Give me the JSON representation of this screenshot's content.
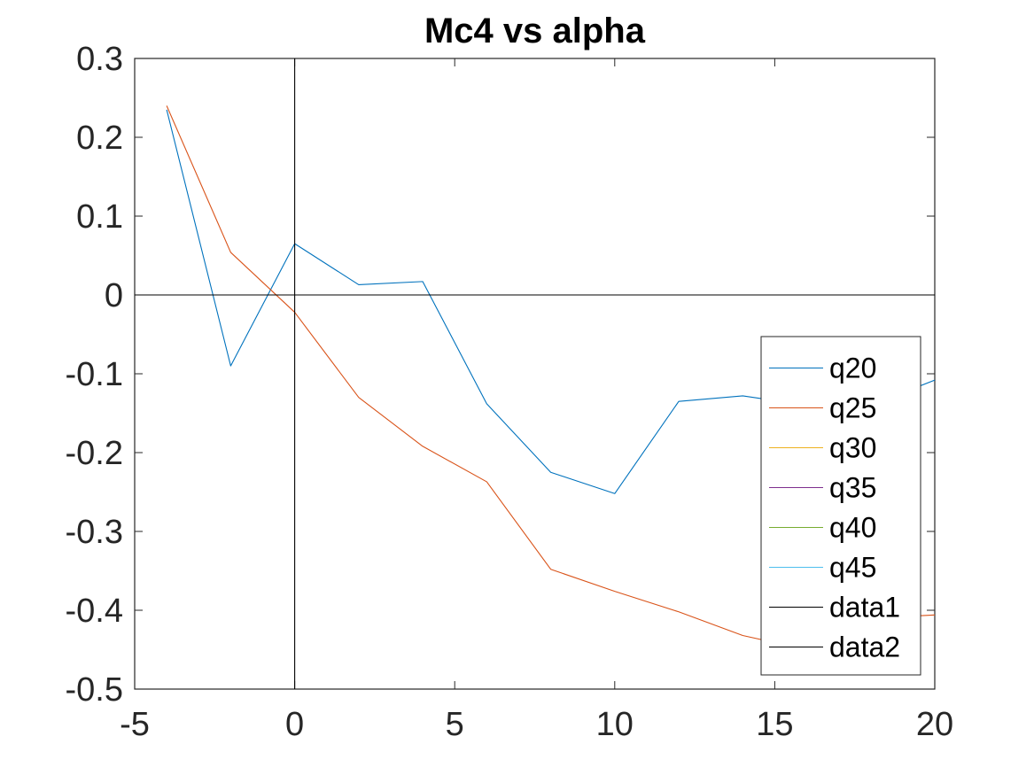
{
  "chart_data": {
    "type": "line",
    "title": "Mc4 vs alpha",
    "xlabel": "",
    "ylabel": "",
    "xlim": [
      -5,
      20
    ],
    "ylim": [
      -0.5,
      0.3
    ],
    "xticks": [
      -5,
      0,
      5,
      10,
      15,
      20
    ],
    "xtick_labels": [
      "-5",
      "0",
      "5",
      "10",
      "15",
      "20"
    ],
    "yticks": [
      -0.5,
      -0.4,
      -0.3,
      -0.2,
      -0.1,
      0,
      0.1,
      0.2,
      0.3
    ],
    "ytick_labels": [
      "-0.5",
      "-0.4",
      "-0.3",
      "-0.2",
      "-0.1",
      "0",
      "0.1",
      "0.2",
      "0.3"
    ],
    "grid": false,
    "legend_position": "bottom-right",
    "series": [
      {
        "name": "q20",
        "color": "#0072BD",
        "x": [
          -4,
          -2,
          0,
          2,
          4,
          6,
          8,
          10,
          12,
          14,
          16,
          18,
          20
        ],
        "y": [
          0.235,
          -0.09,
          0.065,
          0.013,
          0.017,
          -0.138,
          -0.225,
          -0.252,
          -0.135,
          -0.128,
          -0.14,
          -0.14,
          -0.108
        ]
      },
      {
        "name": "q25",
        "color": "#D95319",
        "x": [
          -4,
          -2,
          0,
          2,
          4,
          6,
          8,
          10,
          12,
          14,
          16,
          18,
          20
        ],
        "y": [
          0.24,
          0.054,
          -0.022,
          -0.13,
          -0.192,
          -0.237,
          -0.348,
          -0.376,
          -0.402,
          -0.432,
          -0.45,
          -0.41,
          -0.406
        ]
      },
      {
        "name": "q30",
        "color": "#EDB120",
        "x": [],
        "y": []
      },
      {
        "name": "q35",
        "color": "#7E2F8E",
        "x": [],
        "y": []
      },
      {
        "name": "q40",
        "color": "#77AC30",
        "x": [],
        "y": []
      },
      {
        "name": "q45",
        "color": "#4DBEEE",
        "x": [],
        "y": []
      },
      {
        "name": "data1",
        "color": "#000000",
        "x": [
          0,
          0
        ],
        "y": [
          -0.5,
          0.3
        ]
      },
      {
        "name": "data2",
        "color": "#000000",
        "x": [
          -5,
          20
        ],
        "y": [
          0,
          0
        ]
      }
    ]
  }
}
